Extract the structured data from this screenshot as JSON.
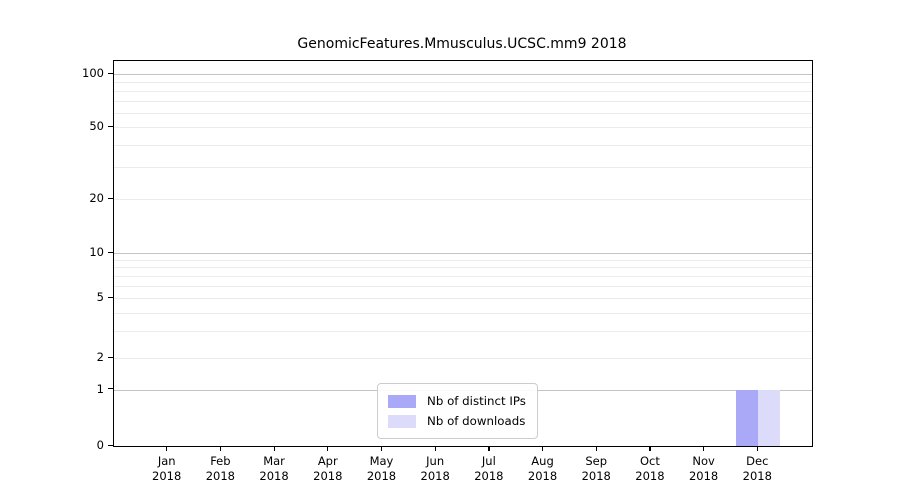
{
  "title": "GenomicFeatures.Mmusculus.UCSC.mm9 2018",
  "chart_data": {
    "type": "bar",
    "title": "GenomicFeatures.Mmusculus.UCSC.mm9 2018",
    "categories": [
      "Jan 2018",
      "Feb 2018",
      "Mar 2018",
      "Apr 2018",
      "May 2018",
      "Jun 2018",
      "Jul 2018",
      "Aug 2018",
      "Sep 2018",
      "Oct 2018",
      "Nov 2018",
      "Dec 2018"
    ],
    "series": [
      {
        "name": "Nb of distinct IPs",
        "color": "#a9a9f7",
        "values": [
          0,
          0,
          0,
          0,
          0,
          0,
          0,
          0,
          0,
          0,
          0,
          1
        ]
      },
      {
        "name": "Nb of downloads",
        "color": "#dcdcfa",
        "values": [
          0,
          0,
          0,
          0,
          0,
          0,
          0,
          0,
          0,
          0,
          0,
          1
        ]
      }
    ],
    "xlabel": "",
    "ylabel": "",
    "y_axis": {
      "scale": "pseudo-log",
      "range": [
        0,
        100
      ],
      "tick_labels": [
        0,
        1,
        2,
        5,
        10,
        20,
        50,
        100
      ],
      "decade_gridlines": [
        1,
        10,
        100
      ],
      "minor_gridlines": [
        2,
        3,
        4,
        5,
        6,
        7,
        8,
        9,
        20,
        30,
        40,
        50,
        60,
        70,
        80,
        90
      ],
      "grid": true
    },
    "legend": {
      "position": "bottom-center",
      "entries": [
        "Nb of distinct IPs",
        "Nb of downloads"
      ]
    }
  },
  "colors": {
    "distinct_ips_bar": "#a9a9f7",
    "downloads_bar": "#dcdcfa",
    "major_gridline": "#c4c4c4",
    "minor_gridline": "#ececec",
    "axis": "#000000",
    "background": "#ffffff"
  }
}
